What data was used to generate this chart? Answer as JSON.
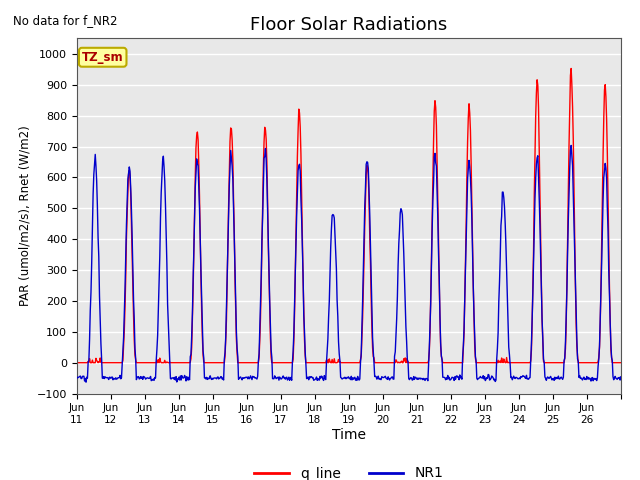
{
  "title": "Floor Solar Radiations",
  "xlabel": "Time",
  "ylabel": "PAR (umol/m2/s), Rnet (W/m2)",
  "ylim": [
    -100,
    1050
  ],
  "yticks": [
    -100,
    0,
    100,
    200,
    300,
    400,
    500,
    600,
    700,
    800,
    900,
    1000
  ],
  "xlim_days": [
    10,
    26
  ],
  "no_data_text": "No data for f_NR2",
  "zone_label": "TZ_sm",
  "red_color": "#ff0000",
  "blue_color": "#0000cc",
  "legend_labels": [
    "q_line",
    "NR1"
  ],
  "background_color": "#e8e8e8",
  "grid_color": "#ffffff",
  "night_blue": -50,
  "day_start": 0.33,
  "day_end": 0.75,
  "peaks_red": [
    0,
    620,
    0,
    750,
    770,
    770,
    810,
    0,
    640,
    0,
    845,
    830,
    0,
    915,
    940,
    900
  ],
  "peaks_blue": [
    660,
    640,
    660,
    665,
    680,
    685,
    650,
    500,
    660,
    500,
    670,
    660,
    550,
    665,
    690,
    650
  ]
}
